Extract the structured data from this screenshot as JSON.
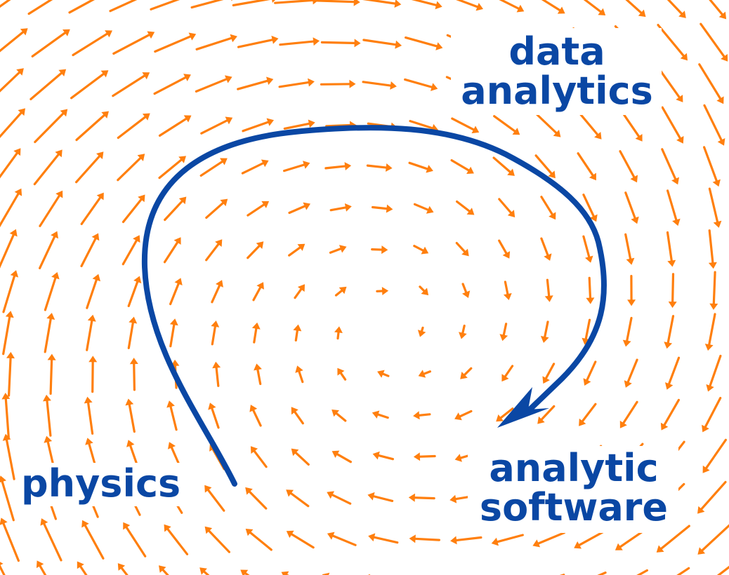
{
  "labels": {
    "top_right": [
      "data",
      "analytics"
    ],
    "bottom_left": "physics",
    "bottom_right": [
      "analytic",
      "software"
    ]
  },
  "colors": {
    "field_arrows": "#ff7f0e",
    "flow_path": "#0a47a4",
    "label_text": "#0a47a4",
    "background": "#ffffff"
  },
  "icons": {
    "field_arrow": "vector-arrow-icon",
    "path_arrowhead": "arrowhead-icon"
  }
}
